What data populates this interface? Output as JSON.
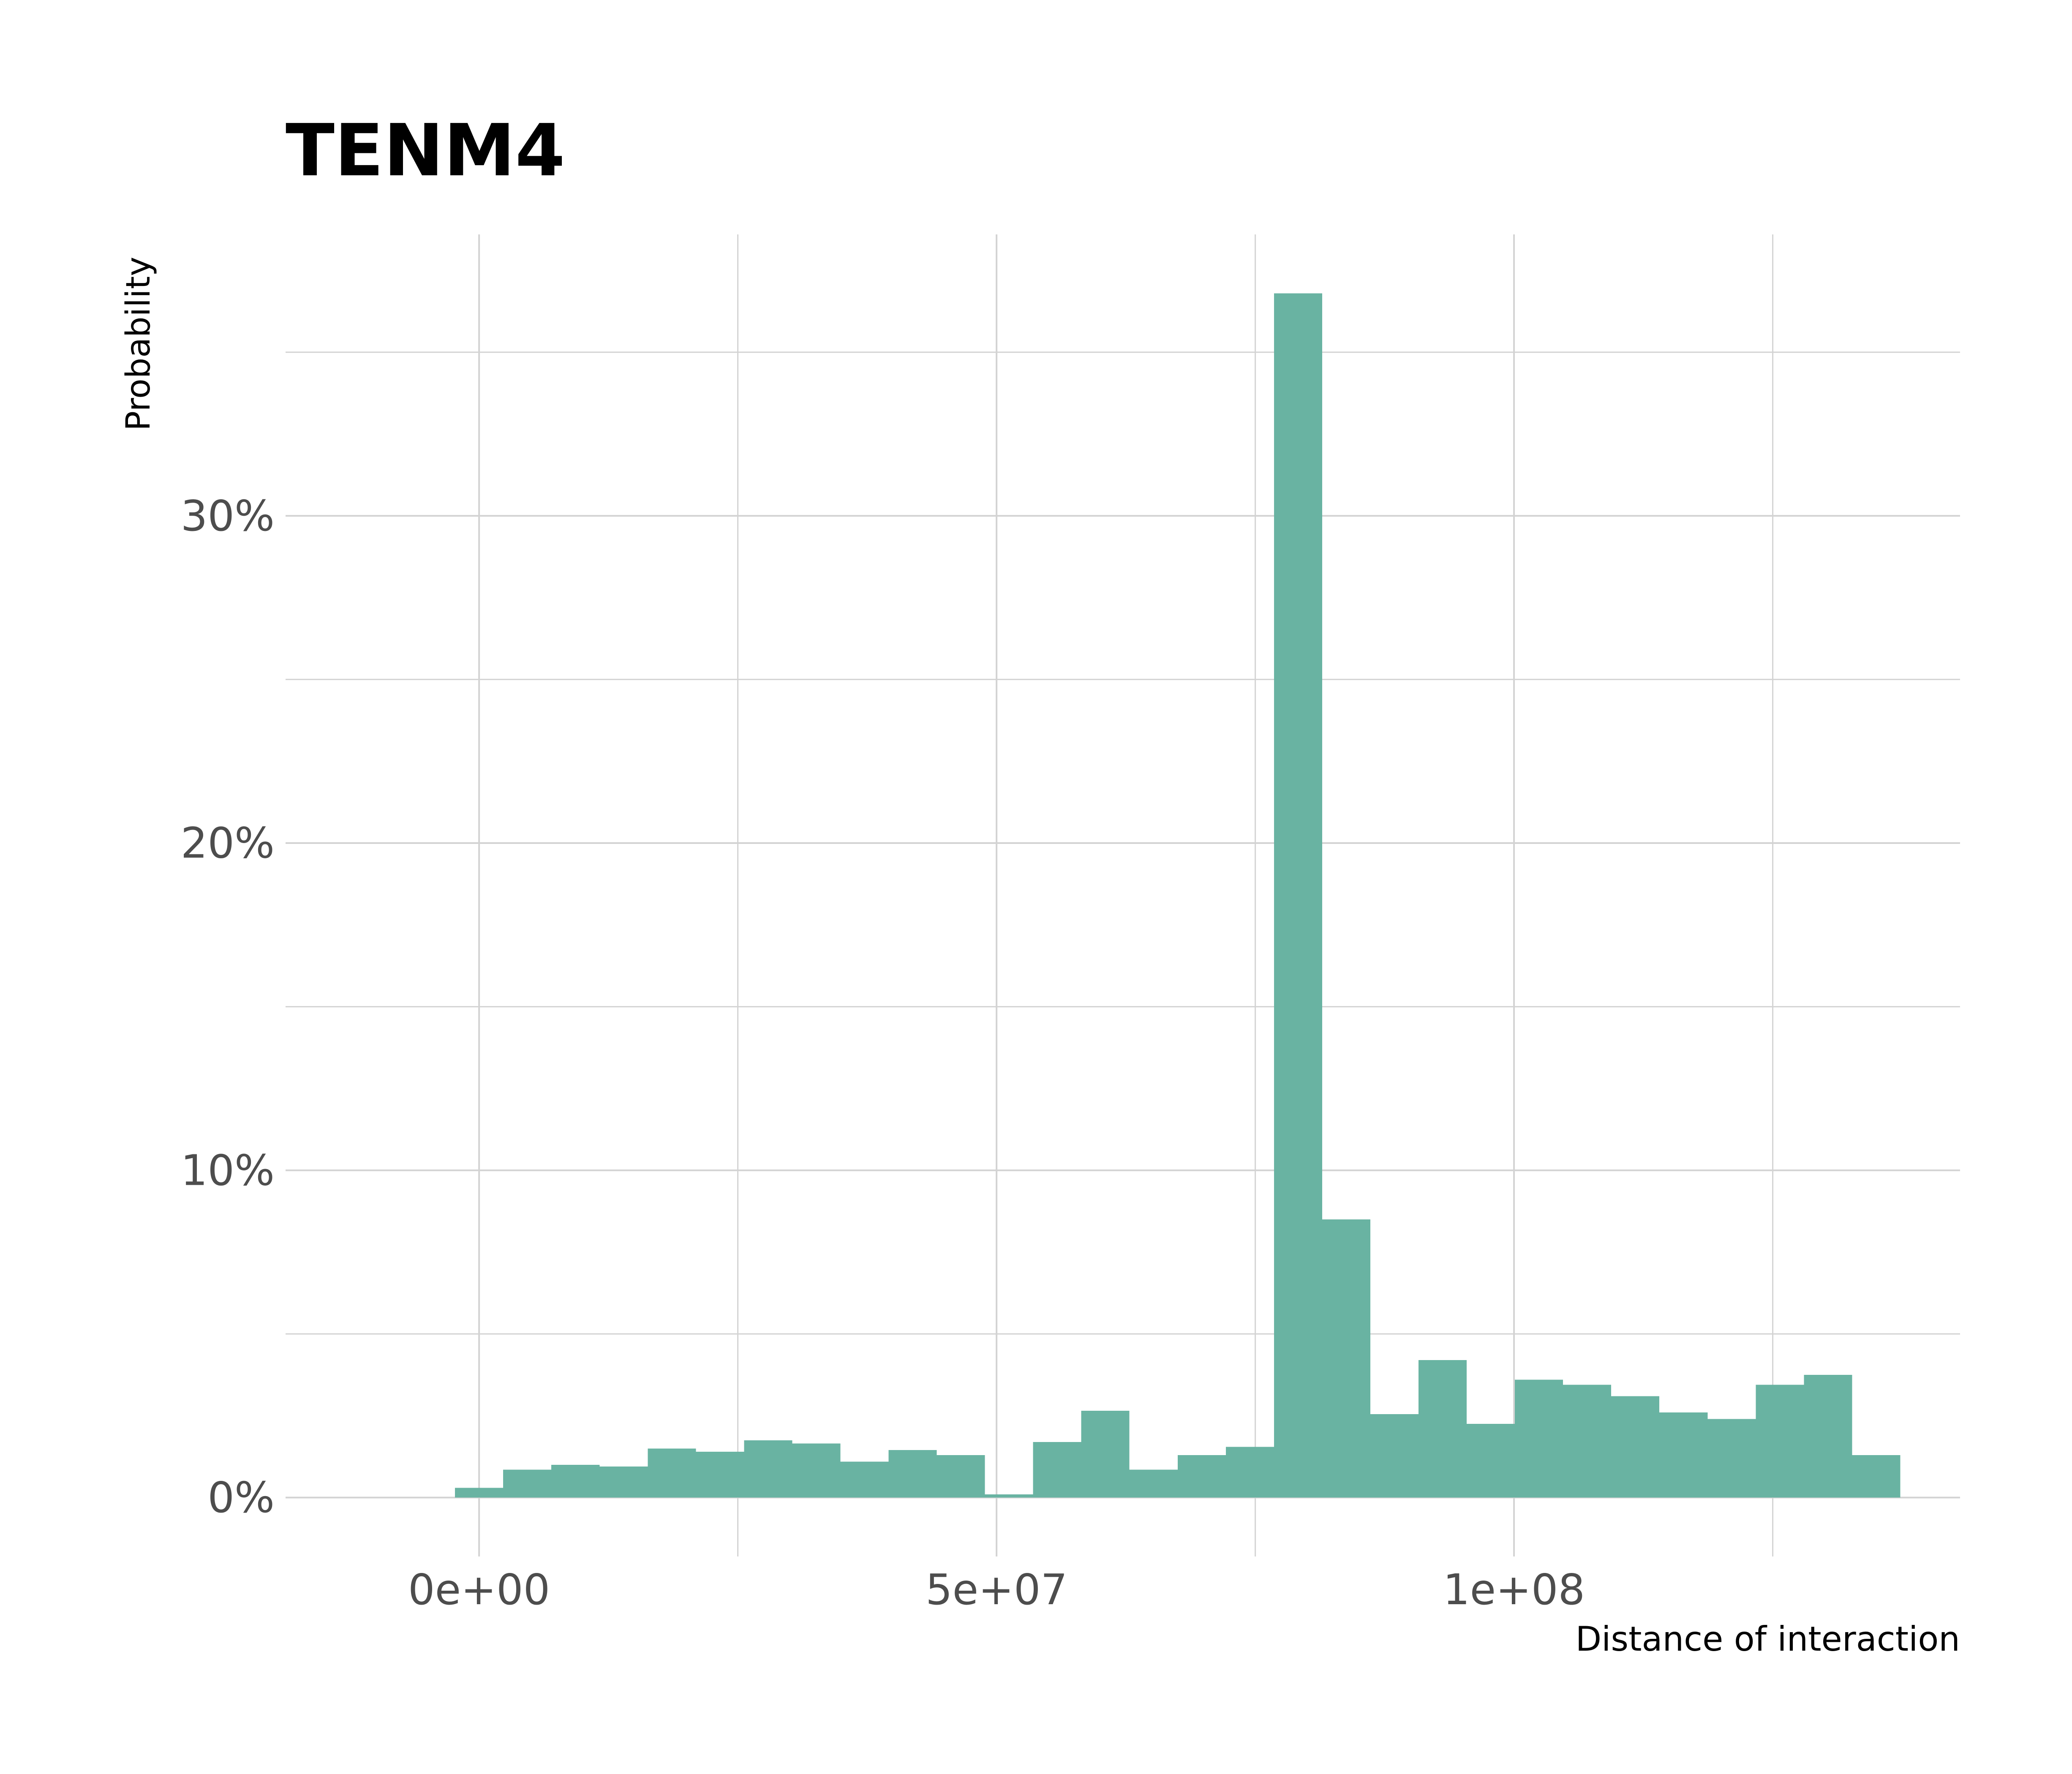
{
  "chart_data": {
    "type": "bar",
    "title": "TENM4",
    "xlabel": "Distance of interaction",
    "ylabel": "Probability",
    "x_ticks": [
      {
        "value": 0,
        "label": "0e+00"
      },
      {
        "value": 50000000,
        "label": "5e+07"
      },
      {
        "value": 100000000,
        "label": "1e+08"
      }
    ],
    "y_ticks": [
      {
        "value": 0,
        "label": "0%"
      },
      {
        "value": 10,
        "label": "10%"
      },
      {
        "value": 20,
        "label": "20%"
      },
      {
        "value": 30,
        "label": "30%"
      }
    ],
    "xlim": [
      -18700000,
      143100000
    ],
    "ylim": [
      -1.8,
      38.6
    ],
    "bin_width": 4655000,
    "bins": [
      {
        "x": 0,
        "value": 0.3
      },
      {
        "x": 4655000,
        "value": 0.85
      },
      {
        "x": 9310000,
        "value": 1.0
      },
      {
        "x": 13965000,
        "value": 0.95
      },
      {
        "x": 18620000,
        "value": 1.5
      },
      {
        "x": 23275000,
        "value": 1.4
      },
      {
        "x": 27930000,
        "value": 1.75
      },
      {
        "x": 32585000,
        "value": 1.65
      },
      {
        "x": 37240000,
        "value": 1.1
      },
      {
        "x": 41895000,
        "value": 1.45
      },
      {
        "x": 46550000,
        "value": 1.3
      },
      {
        "x": 51205000,
        "value": 0.1
      },
      {
        "x": 55860000,
        "value": 1.7
      },
      {
        "x": 60515000,
        "value": 2.65
      },
      {
        "x": 65170000,
        "value": 0.85
      },
      {
        "x": 69825000,
        "value": 1.3
      },
      {
        "x": 74480000,
        "value": 1.55
      },
      {
        "x": 79135000,
        "value": 36.8
      },
      {
        "x": 83790000,
        "value": 8.5
      },
      {
        "x": 88445000,
        "value": 2.55
      },
      {
        "x": 93100000,
        "value": 4.2
      },
      {
        "x": 97755000,
        "value": 2.25
      },
      {
        "x": 102410000,
        "value": 3.6
      },
      {
        "x": 107065000,
        "value": 3.45
      },
      {
        "x": 111720000,
        "value": 3.1
      },
      {
        "x": 116375000,
        "value": 2.6
      },
      {
        "x": 121030000,
        "value": 2.4
      },
      {
        "x": 125685000,
        "value": 3.45
      },
      {
        "x": 130340000,
        "value": 3.75
      },
      {
        "x": 134995000,
        "value": 1.3
      }
    ],
    "bar_color": "#69b3a2",
    "grid": true,
    "grid_color": "#d3d3d3",
    "background": "#ffffff",
    "legend": "none"
  }
}
